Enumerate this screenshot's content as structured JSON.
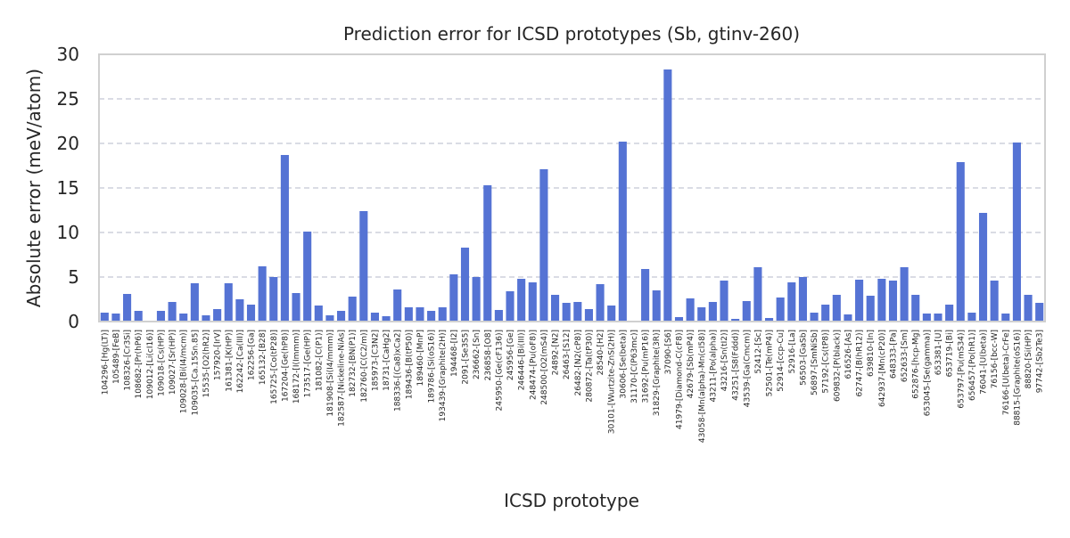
{
  "chart_data": {
    "type": "bar",
    "title": "Prediction error for ICSD prototypes (Sb, gtinv-260)",
    "xlabel": "ICSD prototype",
    "ylabel": "Absolute error (meV/atom)",
    "ylim": [
      0,
      30
    ],
    "yticks": [
      0,
      5,
      10,
      15,
      20,
      25,
      30
    ],
    "grid": true,
    "bar_color": "#5573d4",
    "categories": [
      "104296-[Hg(LT)]",
      "105489-[FeB]",
      "108326-[Cr3Si]",
      "108682-[Pr(hP6)]",
      "109012-[Li(cI16)]",
      "109018-[Cs(HP)]",
      "109027-[Sr(HP)]",
      "109028-[Bi(I4/mcm)]",
      "109035-[Ca.15Sn.85]",
      "15535-[O2(hR2)]",
      "157920-[IrV]",
      "161381-[K(HP)]",
      "162242-[Ca(III)]",
      "162256-[Ga]",
      "165132-[B28]",
      "165725-[Co(tP28)]",
      "167204-[Ge(hP8)]",
      "168172-[I(Immm)]",
      "173517-[Ge(HP)]",
      "181082-[C(P1)]",
      "181908-[Si(I4/mmm)]",
      "182587-[Nickeline-NiAs]",
      "182732-[BN(P1)]",
      "182760-[C(C2/m)]",
      "185973-[C3N2]",
      "18731-[CaHg2]",
      "188336-[(Ca8)xCa2]",
      "189436-[B(tP50)]",
      "189460-[MnP]",
      "189786-[Si(oS16)]",
      "193439-[Graphite(2H)]",
      "194468-[I2]",
      "2091-[Se3S5]",
      "236662-[Sn]",
      "236858-[O8]",
      "245950-[Ge(cF136)]",
      "245956-[Ge]",
      "246446-[Bi(III)]",
      "248474-[Pu(oF8)]",
      "248500-[O2(mS4)]",
      "24892-[N2]",
      "26463-[S12]",
      "26482-[N2(cP8)]",
      "280872-[Ta(tP30)]",
      "28540-[H2]",
      "30101-[Wurtzite-ZnS(2H)]",
      "30606-[Se(beta)]",
      "31170-[C(P63mc)]",
      "31692-[Pu(mP16)]",
      "31829-[Graphite(3R)]",
      "37090-[S6]",
      "41979-[Diamond-C(cF8)]",
      "42679-[Sb(mP4)]",
      "43058-[Mn(alpha)-Mn(cI58)]",
      "43211-[Po(alpha)]",
      "43216-[Sn(tI2)]",
      "43251-[S8(Fddd)]",
      "43539-[Ga(Cmcm)]",
      "52412-[Sc]",
      "52501-[Te(mP4)]",
      "52914-[ccp-Cu]",
      "52916-[La]",
      "56503-[GaSb]",
      "56897-[SmNiSb]",
      "57192-[Cs(tP8)]",
      "609832-[P(black)]",
      "616526-[As]",
      "62747-[B(hR12)]",
      "639810-[In]",
      "642937-[Mn(cP20)]",
      "648333-[Pa]",
      "652633-[Sm]",
      "652876-[hcp-Mg]",
      "653045-[Se(gamma)]",
      "653381-[U]",
      "653719-[Bi]",
      "653797-[Pu(mS34)]",
      "656457-[Po(hR1)]",
      "76041-[U(beta)]",
      "76156-[bcc-W]",
      "76166-[U(beta)-CrFe]",
      "88815-[Graphite(oS16)]",
      "88820-[Si(HP)]",
      "97742-[Sb2Te3]"
    ],
    "values": [
      1.0,
      0.9,
      3.1,
      1.2,
      0.0,
      1.2,
      2.2,
      0.9,
      4.3,
      0.7,
      1.4,
      4.3,
      2.5,
      1.9,
      6.2,
      5.0,
      18.7,
      3.2,
      10.1,
      1.8,
      0.7,
      1.2,
      2.8,
      12.4,
      1.0,
      0.6,
      3.6,
      1.6,
      1.6,
      1.2,
      1.6,
      5.3,
      8.3,
      5.0,
      15.3,
      1.3,
      3.4,
      4.8,
      4.4,
      17.1,
      3.0,
      2.1,
      2.2,
      1.4,
      4.2,
      1.8,
      20.2,
      0.0,
      5.9,
      3.5,
      28.3,
      0.5,
      2.6,
      1.6,
      2.2,
      4.6,
      0.3,
      2.3,
      6.1,
      0.4,
      2.7,
      4.4,
      5.0,
      1.0,
      1.9,
      3.0,
      0.8,
      4.7,
      2.9,
      4.8,
      4.6,
      6.1,
      3.0,
      0.9,
      0.9,
      1.9,
      17.9,
      1.0,
      12.2,
      4.6,
      0.9,
      20.1,
      3.0,
      2.1
    ]
  }
}
